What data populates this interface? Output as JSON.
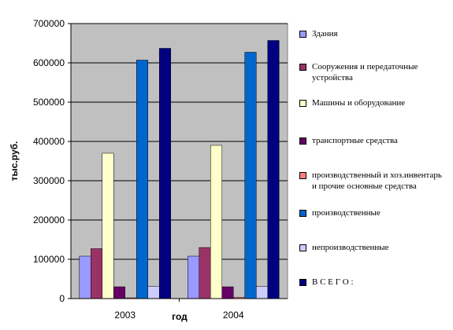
{
  "chart_data": {
    "type": "bar",
    "categories": [
      "2003",
      "2004"
    ],
    "xlabel": "год",
    "ylabel": "тыс.руб.",
    "ylim": [
      0,
      700000
    ],
    "yticks": [
      0,
      100000,
      200000,
      300000,
      400000,
      500000,
      600000,
      700000
    ],
    "ytick_labels": [
      "0",
      "100000",
      "200000",
      "300000",
      "400000",
      "500000",
      "600000",
      "700000"
    ],
    "grid": true,
    "plot_background": "#c0c0c0",
    "legend_position": "right",
    "series": [
      {
        "name": "Здания",
        "color": "#9999ff",
        "values": [
          108000,
          108000
        ]
      },
      {
        "name": "Сооружения и передаточные устройства",
        "color": "#993366",
        "values": [
          127000,
          130000
        ]
      },
      {
        "name": "Машины и оборудование",
        "color": "#ffffcc",
        "values": [
          370000,
          390000
        ]
      },
      {
        "name": "транспортные средства",
        "color": "#660066",
        "values": [
          30000,
          30000
        ]
      },
      {
        "name": "производственный и хоз.инвентарь и прочие основные средства",
        "color": "#ff8080",
        "values": [
          2000,
          3000
        ]
      },
      {
        "name": "производственные",
        "color": "#0066cc",
        "values": [
          607000,
          627000
        ]
      },
      {
        "name": "непроизводственные",
        "color": "#ccccff",
        "values": [
          31000,
          31000
        ]
      },
      {
        "name": "В С Е Г О :",
        "color": "#000080",
        "values": [
          637000,
          657000
        ]
      }
    ]
  }
}
